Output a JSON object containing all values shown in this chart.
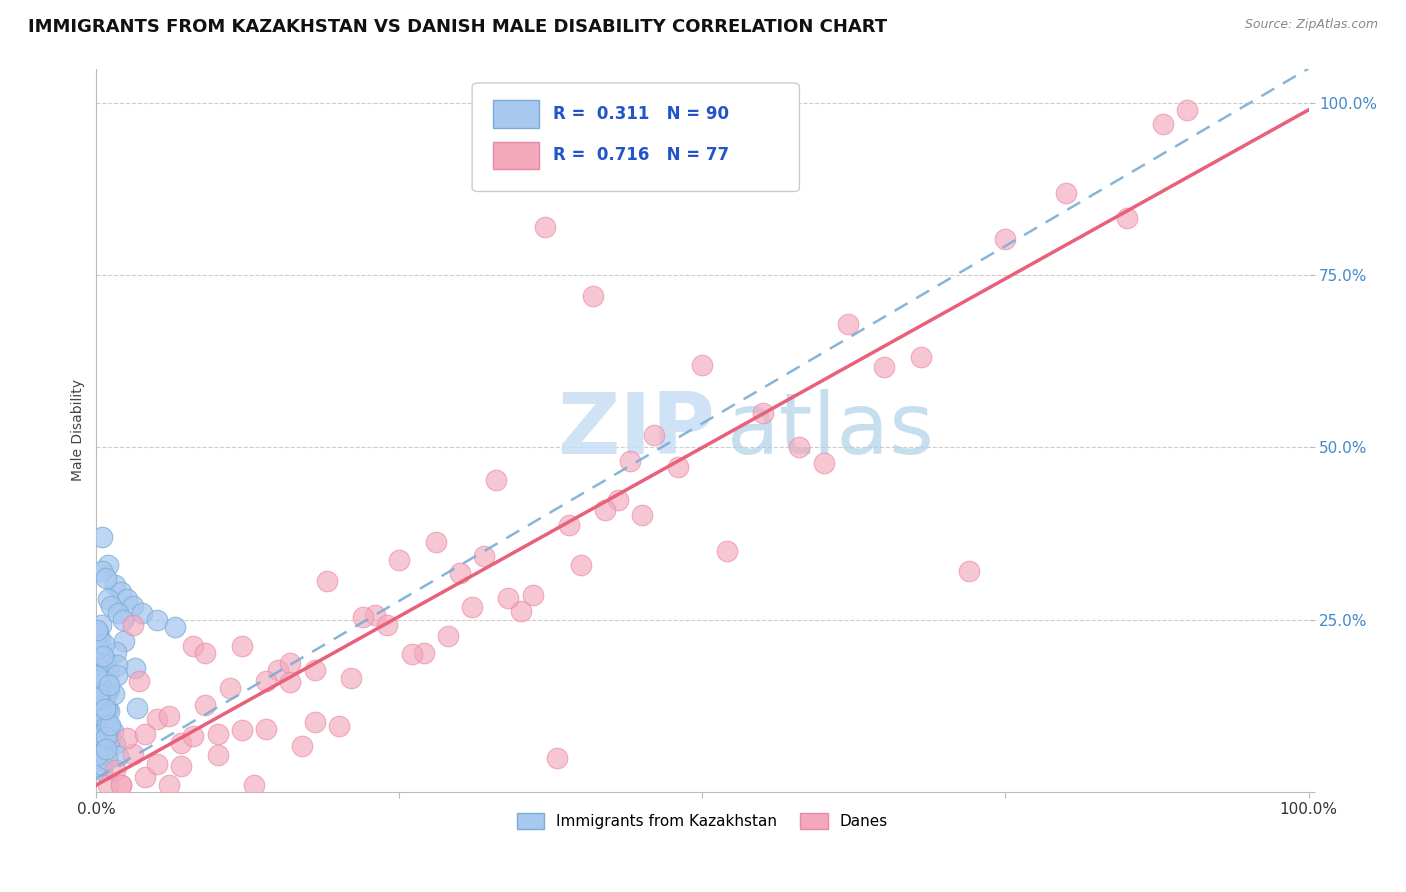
{
  "title": "IMMIGRANTS FROM KAZAKHSTAN VS DANISH MALE DISABILITY CORRELATION CHART",
  "source_text": "Source: ZipAtlas.com",
  "ylabel": "Male Disability",
  "blue_R": 0.311,
  "blue_N": 90,
  "pink_R": 0.716,
  "pink_N": 77,
  "blue_color": "#a8c8f0",
  "blue_edge_color": "#7aadd4",
  "pink_color": "#f4a8bc",
  "pink_edge_color": "#e888a8",
  "blue_line_color": "#7aadd4",
  "pink_line_color": "#e8607a",
  "legend_label_blue": "Immigrants from Kazakhstan",
  "legend_label_pink": "Danes",
  "watermark_zip": "ZIP",
  "watermark_atlas": "atlas",
  "background_color": "#ffffff",
  "title_fontsize": 13,
  "axis_label_fontsize": 10,
  "tick_fontsize": 11,
  "legend_fontsize": 12,
  "blue_slope": 5.5,
  "blue_intercept": 0.02,
  "pink_slope": 0.98,
  "pink_intercept": 0.01
}
